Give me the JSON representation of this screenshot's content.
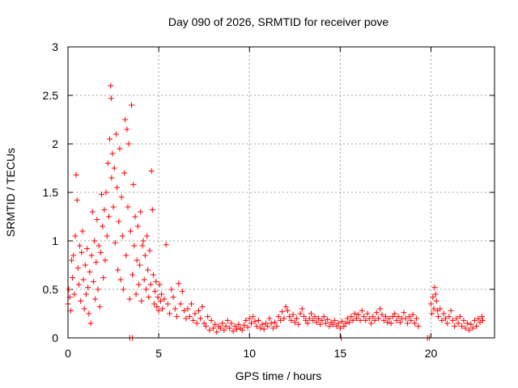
{
  "chart_data": {
    "type": "scatter",
    "title": "Day 090 of 2026, SRMTID for receiver pove",
    "xlabel": "GPS time / hours",
    "ylabel": "SRMTID / TECUs",
    "xlim": [
      0,
      23.5
    ],
    "ylim": [
      0,
      3
    ],
    "x_ticks": [
      0,
      5,
      10,
      15,
      20
    ],
    "x_tick_labels": [
      "0",
      "5",
      "10",
      "15",
      "20"
    ],
    "y_ticks": [
      0,
      0.5,
      1,
      1.5,
      2,
      2.5,
      3
    ],
    "y_tick_labels": [
      "0",
      "0.5",
      "1",
      "1.5",
      "2",
      "2.5",
      "3"
    ],
    "grid": true,
    "marker": "+",
    "series": [
      {
        "name": "SRMTID",
        "color": "#ff0000",
        "points": [
          [
            0.0,
            0.35
          ],
          [
            0.05,
            0.5
          ],
          [
            0.1,
            0.42
          ],
          [
            0.15,
            0.28
          ],
          [
            0.2,
            0.8
          ],
          [
            0.25,
            0.62
          ],
          [
            0.3,
            0.85
          ],
          [
            0.35,
            0.45
          ],
          [
            0.4,
            1.05
          ],
          [
            0.45,
            1.68
          ],
          [
            0.5,
            1.42
          ],
          [
            0.55,
            0.72
          ],
          [
            0.6,
            0.55
          ],
          [
            0.65,
            0.95
          ],
          [
            0.7,
            0.38
          ],
          [
            0.75,
            0.88
          ],
          [
            0.8,
            1.1
          ],
          [
            0.85,
            0.6
          ],
          [
            0.9,
            0.3
          ],
          [
            0.95,
            0.75
          ],
          [
            1.0,
            0.45
          ],
          [
            1.05,
            0.92
          ],
          [
            1.1,
            0.52
          ],
          [
            1.15,
            0.25
          ],
          [
            1.2,
            0.68
          ],
          [
            1.25,
            0.15
          ],
          [
            1.3,
            0.85
          ],
          [
            1.35,
            1.3
          ],
          [
            1.4,
            0.58
          ],
          [
            1.45,
            1.0
          ],
          [
            1.5,
            0.4
          ],
          [
            1.55,
            0.78
          ],
          [
            1.6,
            1.22
          ],
          [
            1.65,
            0.5
          ],
          [
            1.7,
            0.95
          ],
          [
            1.75,
            0.32
          ],
          [
            1.8,
            0.88
          ],
          [
            1.85,
            1.48
          ],
          [
            1.9,
            1.15
          ],
          [
            1.95,
            0.62
          ],
          [
            2.0,
            1.32
          ],
          [
            2.05,
            0.8
          ],
          [
            2.1,
            1.5
          ],
          [
            2.15,
            1.05
          ],
          [
            2.2,
            1.8
          ],
          [
            2.25,
            1.25
          ],
          [
            2.3,
            2.05
          ],
          [
            2.35,
            2.6
          ],
          [
            2.38,
            2.47
          ],
          [
            2.4,
            1.65
          ],
          [
            2.45,
            1.9
          ],
          [
            2.5,
            1.35
          ],
          [
            2.55,
            1.75
          ],
          [
            2.6,
            0.98
          ],
          [
            2.65,
            2.1
          ],
          [
            2.7,
            1.55
          ],
          [
            2.75,
            0.7
          ],
          [
            2.8,
            1.2
          ],
          [
            2.85,
            1.95
          ],
          [
            2.9,
            0.6
          ],
          [
            2.95,
            1.45
          ],
          [
            3.0,
            1.05
          ],
          [
            3.05,
            0.5
          ],
          [
            3.1,
            1.7
          ],
          [
            3.15,
            2.25
          ],
          [
            3.2,
            0.85
          ],
          [
            3.25,
            2.15
          ],
          [
            3.3,
            1.35
          ],
          [
            3.35,
            2.0
          ],
          [
            3.4,
            0.4
          ],
          [
            3.45,
            1.1
          ],
          [
            3.5,
            2.4
          ],
          [
            3.55,
            0.65
          ],
          [
            3.6,
            1.58
          ],
          [
            3.65,
            0.95
          ],
          [
            3.7,
            1.25
          ],
          [
            3.75,
            0.45
          ],
          [
            3.8,
            0.8
          ],
          [
            3.85,
            1.15
          ],
          [
            3.9,
            0.55
          ],
          [
            3.95,
            0.75
          ],
          [
            4.0,
            1.3
          ],
          [
            4.05,
            0.38
          ],
          [
            4.1,
            0.95
          ],
          [
            4.15,
            1.0
          ],
          [
            4.2,
            0.6
          ],
          [
            4.25,
            0.85
          ],
          [
            4.3,
            0.5
          ],
          [
            4.35,
            1.05
          ],
          [
            4.4,
            0.7
          ],
          [
            4.45,
            0.42
          ],
          [
            4.5,
            0.9
          ],
          [
            4.55,
            0.55
          ],
          [
            4.6,
            1.72
          ],
          [
            4.65,
            1.32
          ],
          [
            4.7,
            0.65
          ],
          [
            4.75,
            0.35
          ],
          [
            4.8,
            0.48
          ],
          [
            4.85,
            0.58
          ],
          [
            4.9,
            0.32
          ],
          [
            4.95,
            0.42
          ],
          [
            5.0,
            0.28
          ],
          [
            5.05,
            0.55
          ],
          [
            5.1,
            0.38
          ],
          [
            5.15,
            0.45
          ],
          [
            5.2,
            0.3
          ],
          [
            5.3,
            0.4
          ],
          [
            5.4,
            0.96
          ],
          [
            5.5,
            0.35
          ],
          [
            5.6,
            0.25
          ],
          [
            5.7,
            0.5
          ],
          [
            5.8,
            0.42
          ],
          [
            5.9,
            0.3
          ],
          [
            6.0,
            0.22
          ],
          [
            6.1,
            0.56
          ],
          [
            6.2,
            0.35
          ],
          [
            6.3,
            0.48
          ],
          [
            6.4,
            0.28
          ],
          [
            6.5,
            0.2
          ],
          [
            6.6,
            0.3
          ],
          [
            6.7,
            0.22
          ],
          [
            6.8,
            0.35
          ],
          [
            6.9,
            0.18
          ],
          [
            7.0,
            0.25
          ],
          [
            7.1,
            0.15
          ],
          [
            7.2,
            0.28
          ],
          [
            7.3,
            0.2
          ],
          [
            7.4,
            0.32
          ],
          [
            7.5,
            0.15
          ],
          [
            7.6,
            0.12
          ],
          [
            7.7,
            0.22
          ],
          [
            7.8,
            0.08
          ],
          [
            7.9,
            0.18
          ],
          [
            8.0,
            0.1
          ],
          [
            8.1,
            0.14
          ],
          [
            8.2,
            0.06
          ],
          [
            8.3,
            0.12
          ],
          [
            8.4,
            0.1
          ],
          [
            8.5,
            0.15
          ],
          [
            8.6,
            0.08
          ],
          [
            8.7,
            0.12
          ],
          [
            8.8,
            0.18
          ],
          [
            8.9,
            0.1
          ],
          [
            9.0,
            0.15
          ],
          [
            9.1,
            0.07
          ],
          [
            9.2,
            0.12
          ],
          [
            9.3,
            0.09
          ],
          [
            9.4,
            0.14
          ],
          [
            9.5,
            0.1
          ],
          [
            9.6,
            0.08
          ],
          [
            9.7,
            0.13
          ],
          [
            9.8,
            0.18
          ],
          [
            9.9,
            0.11
          ],
          [
            10.0,
            0.2
          ],
          [
            10.1,
            0.15
          ],
          [
            10.2,
            0.22
          ],
          [
            10.3,
            0.17
          ],
          [
            10.4,
            0.12
          ],
          [
            10.5,
            0.18
          ],
          [
            10.6,
            0.1
          ],
          [
            10.7,
            0.14
          ],
          [
            10.8,
            0.09
          ],
          [
            10.9,
            0.15
          ],
          [
            11.0,
            0.12
          ],
          [
            11.1,
            0.2
          ],
          [
            11.2,
            0.15
          ],
          [
            11.3,
            0.1
          ],
          [
            11.4,
            0.16
          ],
          [
            11.5,
            0.12
          ],
          [
            11.6,
            0.22
          ],
          [
            11.7,
            0.18
          ],
          [
            11.8,
            0.27
          ],
          [
            11.9,
            0.2
          ],
          [
            12.0,
            0.32
          ],
          [
            12.1,
            0.28
          ],
          [
            12.2,
            0.22
          ],
          [
            12.3,
            0.18
          ],
          [
            12.4,
            0.24
          ],
          [
            12.5,
            0.16
          ],
          [
            12.6,
            0.2
          ],
          [
            12.7,
            0.14
          ],
          [
            12.8,
            0.25
          ],
          [
            12.9,
            0.3
          ],
          [
            13.0,
            0.22
          ],
          [
            13.1,
            0.18
          ],
          [
            13.2,
            0.15
          ],
          [
            13.3,
            0.2
          ],
          [
            13.4,
            0.25
          ],
          [
            13.5,
            0.18
          ],
          [
            13.6,
            0.22
          ],
          [
            13.7,
            0.16
          ],
          [
            13.8,
            0.2
          ],
          [
            13.9,
            0.14
          ],
          [
            14.0,
            0.18
          ],
          [
            14.1,
            0.22
          ],
          [
            14.2,
            0.15
          ],
          [
            14.3,
            0.19
          ],
          [
            14.4,
            0.12
          ],
          [
            14.5,
            0.16
          ],
          [
            14.6,
            0.14
          ],
          [
            14.7,
            0.18
          ],
          [
            14.8,
            0.12
          ],
          [
            14.9,
            0.15
          ],
          [
            15.0,
            0.1
          ],
          [
            15.05,
            0.0
          ],
          [
            15.1,
            0.17
          ],
          [
            15.2,
            0.12
          ],
          [
            15.3,
            0.15
          ],
          [
            15.4,
            0.2
          ],
          [
            15.5,
            0.16
          ],
          [
            15.6,
            0.22
          ],
          [
            15.7,
            0.18
          ],
          [
            15.8,
            0.25
          ],
          [
            15.9,
            0.2
          ],
          [
            16.0,
            0.24
          ],
          [
            16.1,
            0.18
          ],
          [
            16.2,
            0.28
          ],
          [
            16.3,
            0.22
          ],
          [
            16.4,
            0.18
          ],
          [
            16.5,
            0.25
          ],
          [
            16.6,
            0.2
          ],
          [
            16.7,
            0.15
          ],
          [
            16.8,
            0.22
          ],
          [
            16.9,
            0.18
          ],
          [
            17.0,
            0.26
          ],
          [
            17.1,
            0.2
          ],
          [
            17.2,
            0.3
          ],
          [
            17.3,
            0.24
          ],
          [
            17.4,
            0.18
          ],
          [
            17.5,
            0.22
          ],
          [
            17.6,
            0.16
          ],
          [
            17.7,
            0.2
          ],
          [
            17.8,
            0.15
          ],
          [
            17.9,
            0.22
          ],
          [
            18.0,
            0.25
          ],
          [
            18.1,
            0.18
          ],
          [
            18.2,
            0.22
          ],
          [
            18.3,
            0.16
          ],
          [
            18.4,
            0.2
          ],
          [
            18.5,
            0.26
          ],
          [
            18.6,
            0.2
          ],
          [
            18.7,
            0.15
          ],
          [
            18.8,
            0.22
          ],
          [
            18.9,
            0.18
          ],
          [
            19.0,
            0.24
          ],
          [
            19.1,
            0.15
          ],
          [
            19.2,
            0.2
          ],
          [
            19.3,
            0.12
          ],
          [
            19.8,
            0.0
          ],
          [
            19.9,
            0.0
          ],
          [
            20.0,
            0.35
          ],
          [
            20.05,
            0.25
          ],
          [
            20.1,
            0.42
          ],
          [
            20.15,
            0.3
          ],
          [
            20.2,
            0.52
          ],
          [
            20.25,
            0.45
          ],
          [
            20.3,
            0.38
          ],
          [
            20.35,
            0.28
          ],
          [
            20.4,
            0.22
          ],
          [
            20.5,
            0.3
          ],
          [
            20.6,
            0.18
          ],
          [
            20.7,
            0.25
          ],
          [
            20.8,
            0.2
          ],
          [
            20.9,
            0.15
          ],
          [
            21.0,
            0.22
          ],
          [
            21.1,
            0.28
          ],
          [
            21.2,
            0.18
          ],
          [
            21.3,
            0.12
          ],
          [
            21.4,
            0.2
          ],
          [
            21.5,
            0.15
          ],
          [
            21.6,
            0.22
          ],
          [
            21.7,
            0.12
          ],
          [
            21.8,
            0.18
          ],
          [
            21.9,
            0.1
          ],
          [
            22.0,
            0.15
          ],
          [
            22.1,
            0.08
          ],
          [
            22.2,
            0.14
          ],
          [
            22.3,
            0.1
          ],
          [
            22.4,
            0.18
          ],
          [
            22.5,
            0.12
          ],
          [
            22.6,
            0.2
          ],
          [
            22.7,
            0.16
          ],
          [
            22.8,
            0.22
          ],
          [
            22.85,
            0.18
          ],
          [
            3.4,
            0.0
          ],
          [
            3.55,
            0.0
          ]
        ]
      }
    ]
  }
}
